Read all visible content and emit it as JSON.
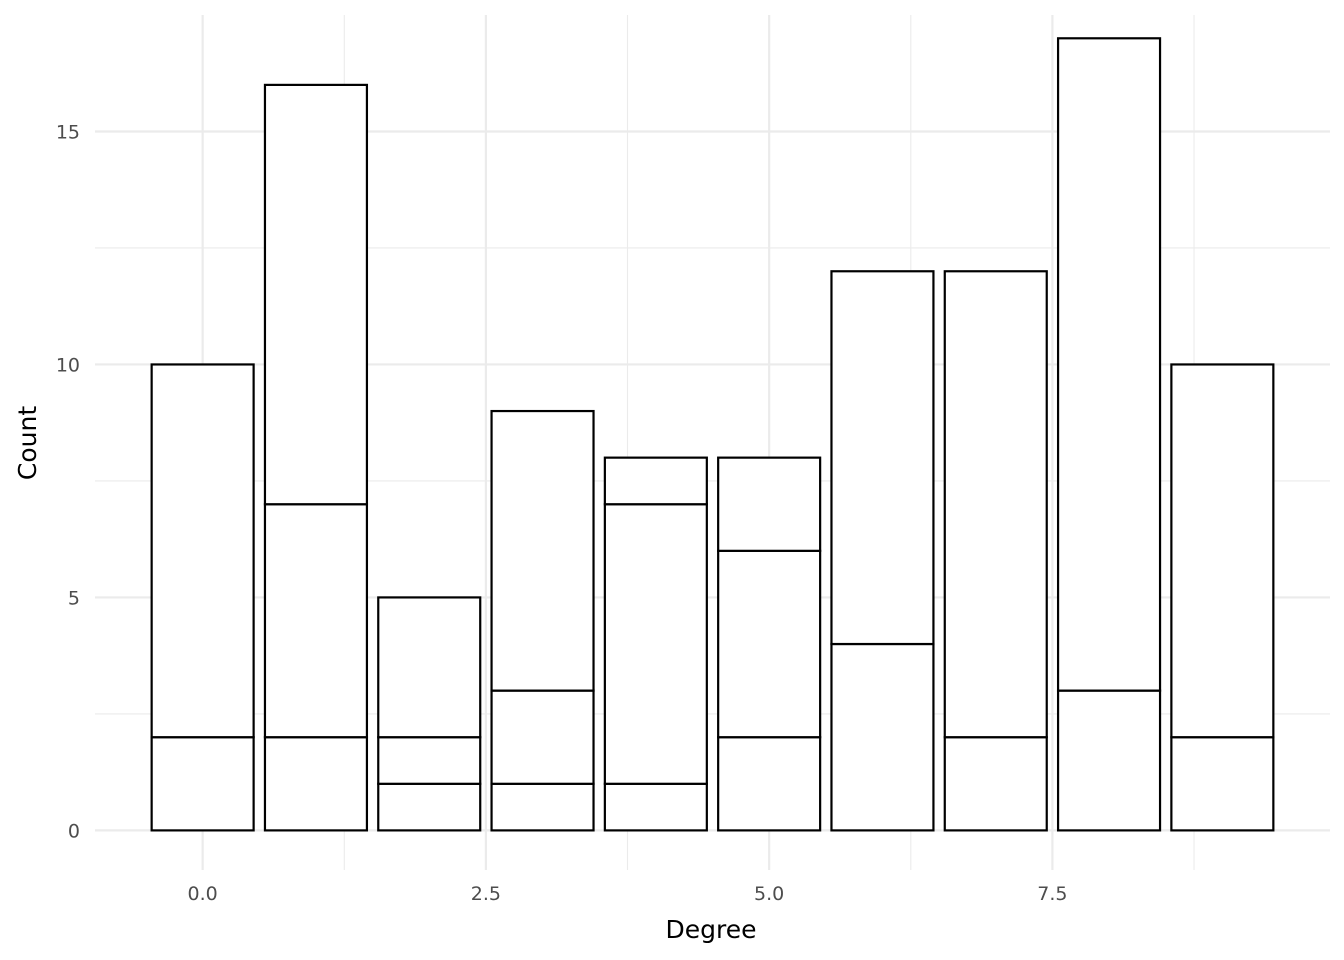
{
  "chart_data": {
    "type": "bar",
    "stacked": true,
    "x": [
      0,
      1,
      2,
      3,
      4,
      5,
      6,
      7,
      8,
      9
    ],
    "segments": [
      [
        2,
        8
      ],
      [
        2,
        5,
        9
      ],
      [
        1,
        1,
        3
      ],
      [
        1,
        2,
        6
      ],
      [
        1,
        6,
        1
      ],
      [
        2,
        4,
        2
      ],
      [
        4,
        8
      ],
      [
        2,
        10
      ],
      [
        3,
        14
      ],
      [
        2,
        8
      ]
    ],
    "totals": [
      10,
      16,
      5,
      9,
      8,
      8,
      12,
      12,
      17,
      10
    ],
    "xlabel": "Degree",
    "ylabel": "Count",
    "xlim": [
      -0.95,
      9.95
    ],
    "ylim": [
      -0.85,
      17.5
    ],
    "x_ticks": [
      0.0,
      2.5,
      5.0,
      7.5
    ],
    "x_tick_labels": [
      "0.0",
      "2.5",
      "5.0",
      "7.5"
    ],
    "y_ticks": [
      0,
      5,
      10,
      15
    ],
    "y_tick_labels": [
      "0",
      "5",
      "10",
      "15"
    ],
    "grid": true,
    "bar_fill": "#ffffff",
    "bar_outline": "#000000"
  }
}
